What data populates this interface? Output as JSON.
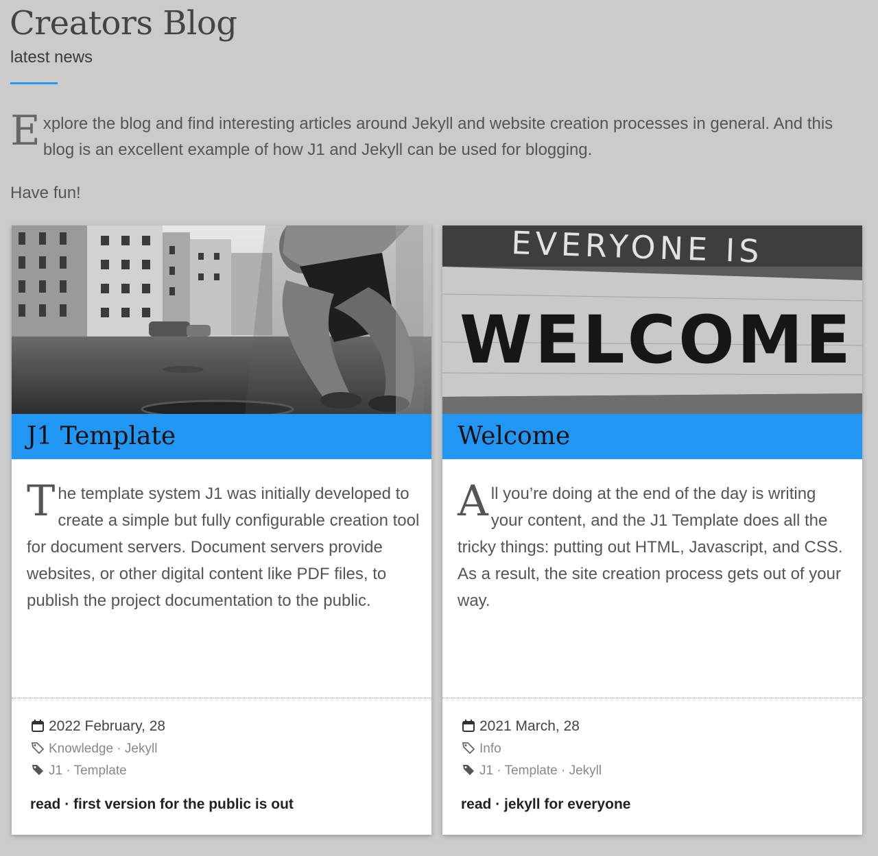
{
  "header": {
    "title": "Creators Blog",
    "subtitle": "latest news"
  },
  "intro": {
    "dropcap": "E",
    "text": "xplore the blog and find interesting articles around Jekyll and website creation processes in general. And this blog is an excellent example of how J1 and Jekyll can be used for blogging.",
    "closing": "Have fun!"
  },
  "colors": {
    "accent": "#2196f3",
    "background": "#cbcbcb"
  },
  "cards": [
    {
      "title": "J1 Template",
      "image": "black-and-white photo of an athlete tying shoes on a street",
      "dropcap": "T",
      "body": "he template system J1 was initially developed to create a simple but fully configurable creation tool for document servers. Document servers provide websites, or other digital content like PDF files, to publish the project documentation to the public.",
      "date": "2022 February, 28",
      "categories": "Knowledge · Jekyll",
      "tags": "J1 · Template",
      "read_link": "read · first version for the public is out"
    },
    {
      "title": "Welcome",
      "image": "black-and-white photo of a wall sign",
      "image_text_top": "EVERYONE IS",
      "image_text_main": "WELCOME",
      "dropcap": "A",
      "body": "ll you’re doing at the end of the day is writing your content, and the J1 Template does all the tricky things: putting out HTML, Javascript, and CSS. As a result, the site creation process gets out of your way.",
      "date": "2021 March, 28",
      "categories": "Info",
      "tags": "J1 · Template · Jekyll",
      "read_link": "read · jekyll for everyone"
    }
  ],
  "icons": {
    "date": "calendar-icon",
    "categories": "tag-outline-icon",
    "tags": "tag-filled-icon"
  }
}
